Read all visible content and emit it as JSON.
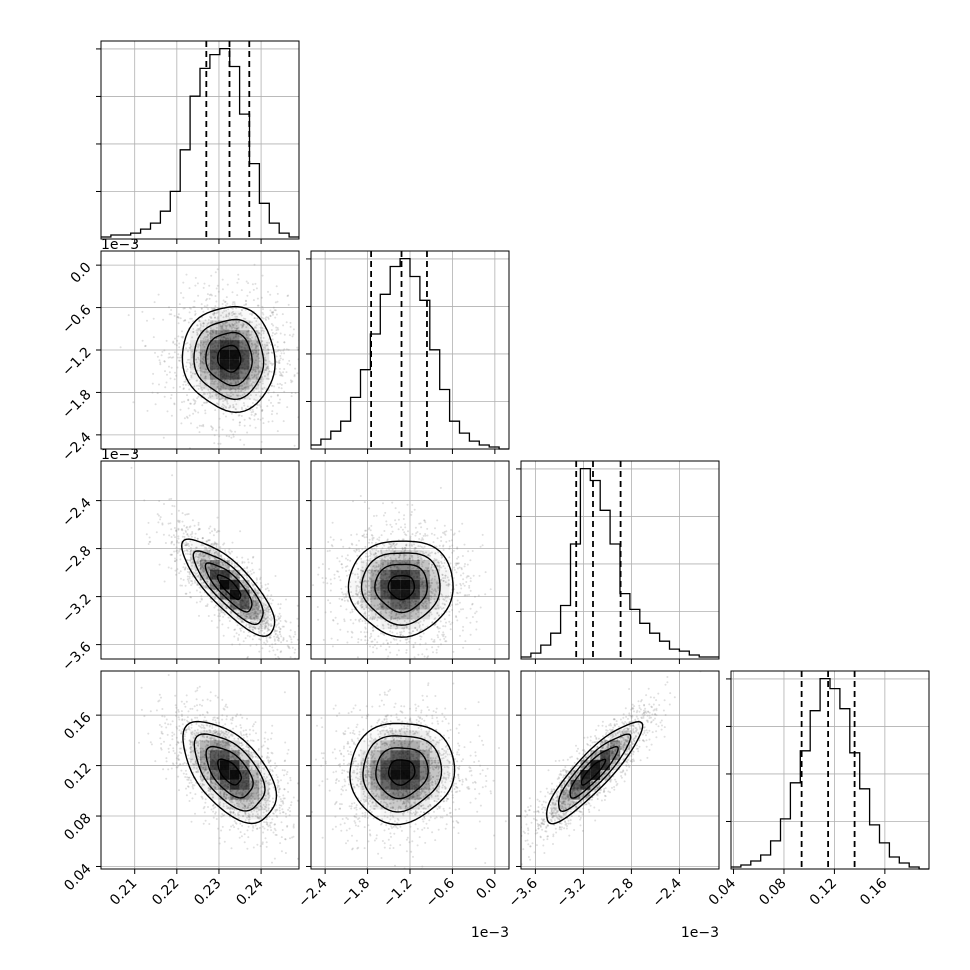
{
  "chart_data": {
    "type": "corner",
    "n_params": 4,
    "grid": true,
    "colors": {
      "line": "#000000",
      "grid": "#b0b0b0",
      "points": "#808080",
      "density_dark": "#000000"
    },
    "params": [
      {
        "ticks": [
          0.21,
          0.22,
          0.23,
          0.24
        ],
        "tick_labels": [
          "0.21",
          "0.22",
          "0.23",
          "0.24"
        ],
        "range": [
          0.202,
          0.249
        ],
        "offset_label": "",
        "quantiles": [
          0.227,
          0.2325,
          0.2372
        ],
        "median": 0.2325,
        "sigma": 0.0055
      },
      {
        "ticks": [
          -0.0024,
          -0.0018,
          -0.0012,
          -0.0006,
          0.0
        ],
        "tick_labels": [
          "−2.4",
          "−1.8",
          "−1.2",
          "−0.6",
          "0.0"
        ],
        "range": [
          -0.0026,
          0.0002
        ],
        "offset_label": "1e−3",
        "quantiles": [
          -0.00175,
          -0.00132,
          -0.00096
        ],
        "median": -0.00132,
        "sigma": 0.00037
      },
      {
        "ticks": [
          -0.0036,
          -0.0032,
          -0.0028,
          -0.0024
        ],
        "tick_labels": [
          "−3.6",
          "−3.2",
          "−2.8",
          "−2.4"
        ],
        "range": [
          -0.00372,
          -0.00207
        ],
        "offset_label": "1e−3",
        "quantiles": [
          -0.00326,
          -0.00312,
          -0.00289
        ],
        "median": -0.00312,
        "sigma": 0.0002
      },
      {
        "ticks": [
          0.04,
          0.08,
          0.12,
          0.16
        ],
        "tick_labels": [
          "0.04",
          "0.08",
          "0.12",
          "0.16"
        ],
        "range": [
          0.038,
          0.195
        ],
        "offset_label": "",
        "quantiles": [
          0.094,
          0.115,
          0.136
        ],
        "median": 0.115,
        "sigma": 0.02
      }
    ],
    "histograms": [
      {
        "param": 0,
        "bin_edges": [
          0.202,
          0.20435,
          0.2067,
          0.20905,
          0.2114,
          0.21375,
          0.2161,
          0.21845,
          0.2208,
          0.22315,
          0.2255,
          0.22785,
          0.2302,
          0.23255,
          0.2349,
          0.23725,
          0.2396,
          0.24195,
          0.2443,
          0.24665,
          0.249
        ],
        "counts": [
          1,
          2,
          2,
          3,
          5,
          8,
          14,
          24,
          45,
          72,
          86,
          93,
          96,
          87,
          63,
          38,
          18,
          8,
          3,
          1
        ]
      },
      {
        "param": 1,
        "bin_edges": [
          -0.0026,
          -0.00246,
          -0.00232,
          -0.00218,
          -0.00204,
          -0.0019,
          -0.00176,
          -0.00162,
          -0.00148,
          -0.00134,
          -0.0012,
          -0.00106,
          -0.00092,
          -0.00078,
          -0.00064,
          -0.0005,
          -0.00036,
          -0.00022,
          -8e-05,
          6e-05,
          0.0002
        ],
        "counts": [
          2,
          5,
          9,
          14,
          26,
          40,
          58,
          78,
          92,
          96,
          87,
          75,
          50,
          30,
          14,
          8,
          4,
          2,
          1,
          0
        ]
      },
      {
        "param": 2,
        "bin_edges": [
          -0.00372,
          -0.0036375,
          -0.003555,
          -0.0034725,
          -0.00339,
          -0.0033075,
          -0.003225,
          -0.0031425,
          -0.00306,
          -0.0029775,
          -0.002895,
          -0.0028125,
          -0.00273,
          -0.0026475,
          -0.002565,
          -0.0024825,
          -0.0024,
          -0.0023175,
          -0.002235,
          -0.0021525,
          -0.00207
        ],
        "counts": [
          1,
          3,
          7,
          13,
          27,
          58,
          96,
          90,
          75,
          58,
          33,
          25,
          18,
          13,
          9,
          5,
          4,
          2,
          1,
          1
        ]
      },
      {
        "param": 3,
        "bin_edges": [
          0.038,
          0.04585,
          0.0537,
          0.06155,
          0.0694,
          0.07725,
          0.0851,
          0.09295,
          0.1008,
          0.10865,
          0.1165,
          0.12435,
          0.1322,
          0.14005,
          0.1479,
          0.15575,
          0.1636,
          0.17145,
          0.1793,
          0.18715,
          0.195
        ],
        "counts": [
          1,
          2,
          4,
          7,
          14,
          25,
          43,
          59,
          79,
          95,
          90,
          80,
          58,
          40,
          22,
          13,
          6,
          3,
          1,
          0
        ]
      }
    ],
    "correlations": [
      {
        "x": 0,
        "y": 1,
        "rho": -0.05
      },
      {
        "x": 0,
        "y": 2,
        "rho": -0.8
      },
      {
        "x": 1,
        "y": 2,
        "rho": 0.0
      },
      {
        "x": 0,
        "y": 3,
        "rho": -0.55
      },
      {
        "x": 1,
        "y": 3,
        "rho": 0.05
      },
      {
        "x": 2,
        "y": 3,
        "rho": 0.88
      }
    ],
    "contour_levels_sigma": [
      0.5,
      1.0,
      1.5,
      2.0
    ]
  }
}
